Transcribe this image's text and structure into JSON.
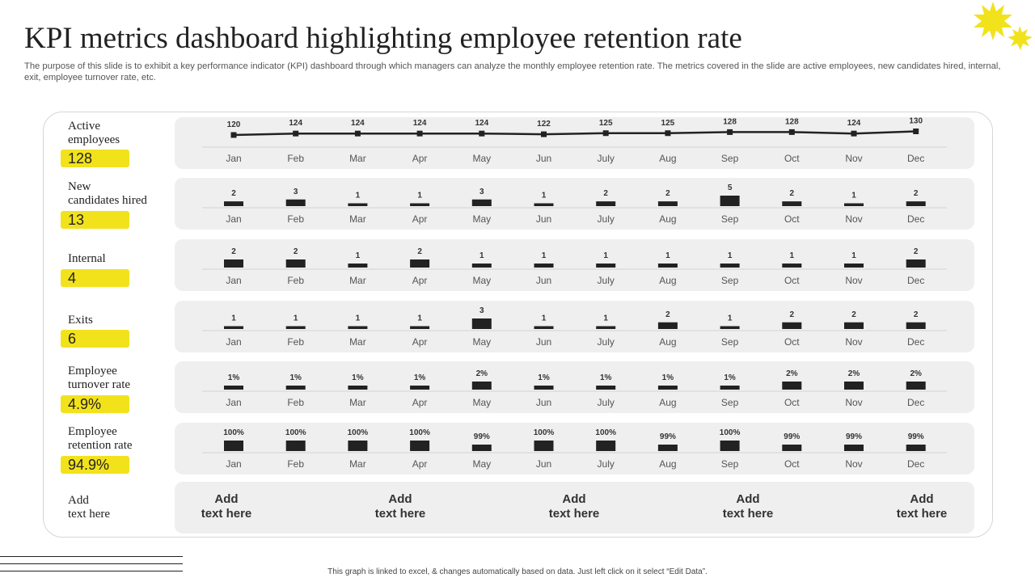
{
  "title": "KPI metrics dashboard highlighting employee retention rate",
  "subtitle": "The purpose of this slide is to exhibit a key performance indicator (KPI) dashboard through which managers can analyze the monthly employee retention rate. The metrics covered in the slide are active employees, new candidates hired, internal, exit,  employee turnover rate, etc.",
  "colors": {
    "accent": "#f2e21c",
    "bar": "#222222",
    "panel": "#efefef"
  },
  "metrics": [
    {
      "label_line1": "Active",
      "label_line2": "employees",
      "value": "128"
    },
    {
      "label_line1": "New",
      "label_line2": "candidates hired",
      "value": "13"
    },
    {
      "label_line1": "Internal",
      "label_line2": "",
      "value": "4"
    },
    {
      "label_line1": "Exits",
      "label_line2": "",
      "value": "6"
    },
    {
      "label_line1": "Employee",
      "label_line2": "turnover rate",
      "value": "4.9%"
    },
    {
      "label_line1": "Employee",
      "label_line2": "retention rate",
      "value": "94.9%"
    }
  ],
  "add_row": {
    "label_line1": "Add",
    "label_line2": "text here",
    "items": [
      {
        "line1": "Add",
        "line2": "text here"
      },
      {
        "line1": "Add",
        "line2": "text here"
      },
      {
        "line1": "Add",
        "line2": "text here"
      },
      {
        "line1": "Add",
        "line2": "text here"
      },
      {
        "line1": "Add",
        "line2": "text here"
      }
    ]
  },
  "footer": "This graph is linked to excel, & changes automatically based on data. Just left click on it select “Edit Data”.",
  "chart_data": [
    {
      "type": "line",
      "categories": [
        "Jan",
        "Feb",
        "Mar",
        "Apr",
        "May",
        "Jun",
        "July",
        "Aug",
        "Sep",
        "Oct",
        "Nov",
        "Dec"
      ],
      "values": [
        120,
        124,
        124,
        124,
        124,
        122,
        125,
        125,
        128,
        128,
        124,
        130
      ],
      "labels": [
        "120",
        "124",
        "124",
        "124",
        "124",
        "122",
        "125",
        "125",
        "128",
        "128",
        "124",
        "130"
      ],
      "ylim": [
        0,
        130
      ]
    },
    {
      "type": "bar",
      "categories": [
        "Jan",
        "Feb",
        "Mar",
        "Apr",
        "May",
        "Jun",
        "July",
        "Aug",
        "Sep",
        "Oct",
        "Nov",
        "Dec"
      ],
      "values": [
        2,
        3,
        1,
        1,
        3,
        1,
        2,
        2,
        5,
        2,
        1,
        2
      ],
      "labels": [
        "2",
        "3",
        "1",
        "1",
        "3",
        "1",
        "2",
        "2",
        "5",
        "2",
        "1",
        "2"
      ],
      "ylim": [
        0,
        5
      ]
    },
    {
      "type": "bar",
      "categories": [
        "Jan",
        "Feb",
        "Mar",
        "Apr",
        "May",
        "Jun",
        "July",
        "Aug",
        "Sep",
        "Oct",
        "Nov",
        "Dec"
      ],
      "values": [
        2,
        2,
        1,
        2,
        1,
        1,
        1,
        1,
        1,
        1,
        1,
        2
      ],
      "labels": [
        "2",
        "2",
        "1",
        "2",
        "1",
        "1",
        "1",
        "1",
        "1",
        "1",
        "1",
        "2"
      ],
      "ylim": [
        0,
        2
      ]
    },
    {
      "type": "bar",
      "categories": [
        "Jan",
        "Feb",
        "Mar",
        "Apr",
        "May",
        "Jun",
        "July",
        "Aug",
        "Sep",
        "Oct",
        "Nov",
        "Dec"
      ],
      "values": [
        1,
        1,
        1,
        1,
        3,
        1,
        1,
        2,
        1,
        2,
        2,
        2
      ],
      "labels": [
        "1",
        "1",
        "1",
        "1",
        "3",
        "1",
        "1",
        "2",
        "1",
        "2",
        "2",
        "2"
      ],
      "ylim": [
        0,
        3
      ]
    },
    {
      "type": "bar",
      "categories": [
        "Jan",
        "Feb",
        "Mar",
        "Apr",
        "May",
        "Jun",
        "July",
        "Aug",
        "Sep",
        "Oct",
        "Nov",
        "Dec"
      ],
      "values": [
        1,
        1,
        1,
        1,
        2,
        1,
        1,
        1,
        1,
        2,
        2,
        2
      ],
      "labels": [
        "1%",
        "1%",
        "1%",
        "1%",
        "2%",
        "1%",
        "1%",
        "1%",
        "1%",
        "2%",
        "2%",
        "2%"
      ],
      "ylim": [
        0,
        2
      ]
    },
    {
      "type": "bar",
      "categories": [
        "Jan",
        "Feb",
        "Mar",
        "Apr",
        "May",
        "Jun",
        "July",
        "Aug",
        "Sep",
        "Oct",
        "Nov",
        "Dec"
      ],
      "values": [
        100,
        100,
        100,
        100,
        99,
        100,
        100,
        99,
        100,
        99,
        99,
        99
      ],
      "labels": [
        "100%",
        "100%",
        "100%",
        "100%",
        "99%",
        "100%",
        "100%",
        "99%",
        "100%",
        "99%",
        "99%",
        "99%"
      ],
      "ylim": [
        98,
        100
      ]
    }
  ]
}
